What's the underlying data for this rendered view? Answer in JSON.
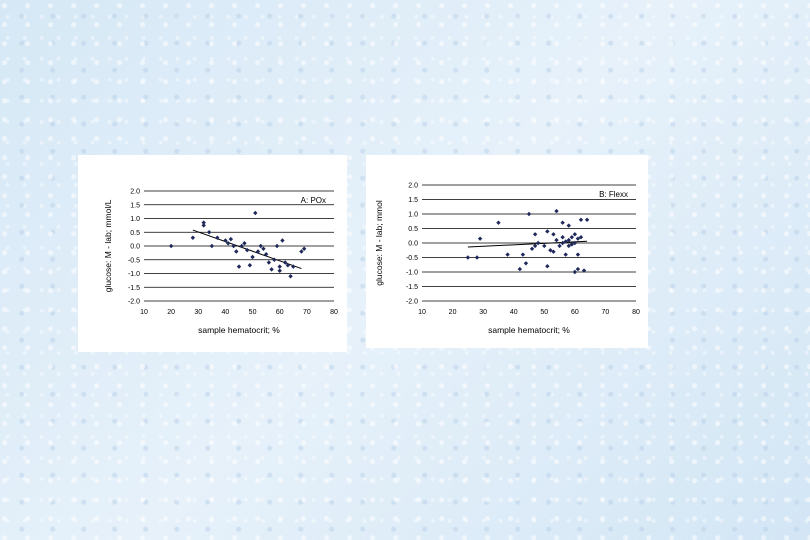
{
  "chart_data": [
    {
      "type": "scatter",
      "title": "A: POx",
      "xlabel": "sample hematocrit; %",
      "ylabel": "glucose: M - lab; mmol/L",
      "xlim": [
        10,
        80
      ],
      "ylim": [
        -2.0,
        2.0
      ],
      "xticks": [
        "10",
        "20",
        "30",
        "40",
        "50",
        "60",
        "70",
        "80"
      ],
      "yticks": [
        "2.0",
        "1.5",
        "1.0",
        "0.5",
        "0.0",
        "-0.5",
        "-1.0",
        "-1.5",
        "-2.0"
      ],
      "grid": true,
      "marker_color": "#1f2a5a",
      "points": [
        [
          20,
          0.0
        ],
        [
          28,
          0.3
        ],
        [
          32,
          0.85
        ],
        [
          32,
          0.75
        ],
        [
          34,
          0.5
        ],
        [
          35,
          0.0
        ],
        [
          37,
          0.3
        ],
        [
          40,
          0.2
        ],
        [
          41,
          0.1
        ],
        [
          42,
          0.25
        ],
        [
          43,
          0.0
        ],
        [
          44,
          -0.2
        ],
        [
          45,
          -0.75
        ],
        [
          46,
          0.0
        ],
        [
          47,
          0.1
        ],
        [
          48,
          -0.15
        ],
        [
          49,
          -0.7
        ],
        [
          50,
          -0.4
        ],
        [
          51,
          1.2
        ],
        [
          52,
          -0.2
        ],
        [
          53,
          0.0
        ],
        [
          54,
          -0.1
        ],
        [
          55,
          -0.3
        ],
        [
          56,
          -0.6
        ],
        [
          57,
          -0.85
        ],
        [
          58,
          -0.5
        ],
        [
          59,
          0.0
        ],
        [
          60,
          -0.75
        ],
        [
          60,
          -0.9
        ],
        [
          61,
          0.2
        ],
        [
          62,
          -0.6
        ],
        [
          63,
          -0.7
        ],
        [
          64,
          -1.1
        ],
        [
          65,
          -0.75
        ],
        [
          68,
          -0.2
        ],
        [
          69,
          -0.1
        ]
      ],
      "trendline": [
        [
          28,
          0.58
        ],
        [
          68,
          -0.82
        ]
      ]
    },
    {
      "type": "scatter",
      "title": "B: Flexx",
      "xlabel": "sample hematocrit; %",
      "ylabel": "glucose: M - lab; mmol",
      "xlim": [
        10,
        80
      ],
      "ylim": [
        -2.0,
        2.0
      ],
      "xticks": [
        "10",
        "20",
        "30",
        "40",
        "50",
        "60",
        "70",
        "80"
      ],
      "yticks": [
        "2.0",
        "1.5",
        "1.0",
        "0.5",
        "0.0",
        "-0.5",
        "-1.0",
        "-1.5",
        "-2.0"
      ],
      "grid": true,
      "marker_color": "#1f2a5a",
      "points": [
        [
          25,
          -0.5
        ],
        [
          28,
          -0.5
        ],
        [
          29,
          0.15
        ],
        [
          35,
          0.7
        ],
        [
          38,
          -0.4
        ],
        [
          42,
          -0.9
        ],
        [
          43,
          -0.4
        ],
        [
          44,
          -0.7
        ],
        [
          45,
          1.0
        ],
        [
          46,
          -0.2
        ],
        [
          47,
          0.3
        ],
        [
          47,
          -0.1
        ],
        [
          48,
          0.0
        ],
        [
          50,
          -0.1
        ],
        [
          51,
          -0.8
        ],
        [
          51,
          0.4
        ],
        [
          52,
          -0.25
        ],
        [
          53,
          -0.3
        ],
        [
          53,
          0.3
        ],
        [
          54,
          1.1
        ],
        [
          54,
          0.1
        ],
        [
          55,
          -0.1
        ],
        [
          56,
          0.2
        ],
        [
          56,
          0.0
        ],
        [
          56,
          0.7
        ],
        [
          57,
          -0.4
        ],
        [
          57,
          0.05
        ],
        [
          58,
          0.1
        ],
        [
          58,
          0.6
        ],
        [
          58,
          -0.1
        ],
        [
          59,
          0.2
        ],
        [
          59,
          -0.05
        ],
        [
          60,
          0.0
        ],
        [
          60,
          0.3
        ],
        [
          60,
          -1.0
        ],
        [
          61,
          0.15
        ],
        [
          61,
          -0.9
        ],
        [
          61,
          -0.4
        ],
        [
          62,
          0.2
        ],
        [
          62,
          0.8
        ],
        [
          63,
          -0.95
        ],
        [
          64,
          0.8
        ]
      ],
      "trendline": [
        [
          25,
          -0.14
        ],
        [
          64,
          0.06
        ]
      ]
    }
  ]
}
